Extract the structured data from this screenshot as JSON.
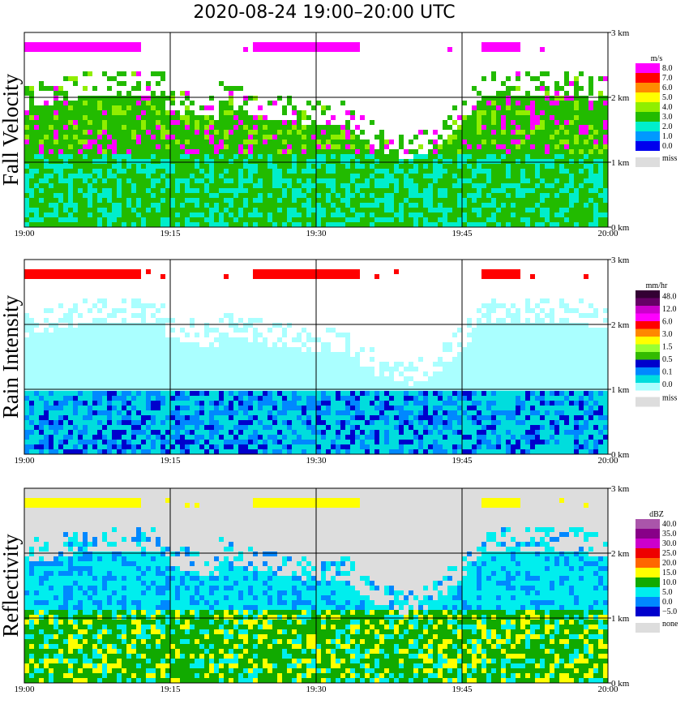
{
  "title": "2020-08-24   19:00–20:00 UTC",
  "chart_data": [
    {
      "type": "heatmap",
      "ylabel": "Fall Velocity",
      "x_ticks": [
        "19:00",
        "19:15",
        "19:30",
        "19:45",
        "20:00"
      ],
      "y_ticks": [
        "0 km",
        "1 km",
        "2 km",
        "3 km"
      ],
      "ylim": [
        0,
        3
      ],
      "x_range": [
        "19:00",
        "20:00"
      ],
      "grid": true,
      "background": "#ffffff",
      "legend": {
        "unit": "m/s",
        "labels": [
          "8.0",
          "7.0",
          "6.0",
          "5.0",
          "4.0",
          "3.0",
          "2.0",
          "1.0",
          "0.0"
        ],
        "colors": [
          "#ff00ff",
          "#ff0000",
          "#ff8c00",
          "#ffff00",
          "#90ee00",
          "#22bb00",
          "#00eecc",
          "#0099ff",
          "#0000ee"
        ],
        "missing_label": "miss",
        "missing_color": "#dddddd"
      }
    },
    {
      "type": "heatmap",
      "ylabel": "Rain Intensity",
      "x_ticks": [
        "19:00",
        "19:15",
        "19:30",
        "19:45",
        "20:00"
      ],
      "y_ticks": [
        "0 km",
        "1 km",
        "2 km",
        "3 km"
      ],
      "ylim": [
        0,
        3
      ],
      "x_range": [
        "19:00",
        "20:00"
      ],
      "grid": true,
      "background": "#ffffff",
      "legend": {
        "unit": "mm/hr",
        "labels": [
          "48.0",
          "12.0",
          "6.0",
          "3.0",
          "1.5",
          "0.5",
          "0.1",
          "0.0"
        ],
        "colors": [
          "#330033",
          "#660066",
          "#cc00cc",
          "#ff00ff",
          "#ff0000",
          "#ff8800",
          "#ffff00",
          "#99ff33",
          "#33bb00",
          "#0000cc",
          "#0088ff",
          "#00dddd",
          "#aaffff"
        ],
        "missing_label": "miss",
        "missing_color": "#dddddd"
      }
    },
    {
      "type": "heatmap",
      "ylabel": "Reflectivity",
      "x_ticks": [
        "19:00",
        "19:15",
        "19:30",
        "19:45",
        "20:00"
      ],
      "y_ticks": [
        "0 km",
        "1 km",
        "2 km",
        "3 km"
      ],
      "ylim": [
        0,
        3
      ],
      "x_range": [
        "19:00",
        "20:00"
      ],
      "grid": true,
      "background": "#dddddd",
      "legend": {
        "unit": "dBZ",
        "labels": [
          "40.0",
          "35.0",
          "30.0",
          "25.0",
          "20.0",
          "15.0",
          "10.0",
          "5.0",
          "0.0",
          "−5.0"
        ],
        "colors": [
          "#aa55aa",
          "#880088",
          "#cc00cc",
          "#ee0000",
          "#ff6600",
          "#ffff00",
          "#11aa00",
          "#00eeee",
          "#0088ff",
          "#0000cc"
        ],
        "missing_label": "none",
        "missing_color": "#dddddd"
      }
    }
  ]
}
